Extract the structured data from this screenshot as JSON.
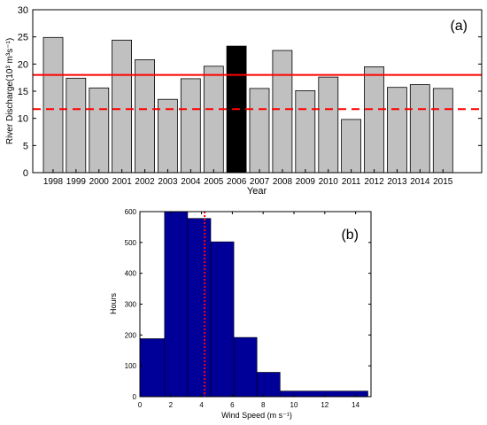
{
  "chart_data": [
    {
      "type": "bar",
      "panel_label": "(a)",
      "xlabel": "Year",
      "ylabel": "River Discharge(10³ m³s⁻¹)",
      "ylim": [
        0,
        30
      ],
      "yticks": [
        "0",
        "5",
        "10",
        "15",
        "20",
        "25",
        "30"
      ],
      "categories": [
        "1998",
        "1999",
        "2000",
        "2001",
        "2002",
        "2003",
        "2004",
        "2005",
        "2006",
        "2007",
        "2008",
        "2009",
        "2010",
        "2011",
        "2012",
        "2013",
        "2014",
        "2015"
      ],
      "values": [
        24.9,
        17.4,
        15.6,
        24.4,
        20.8,
        13.5,
        17.3,
        19.6,
        23.3,
        15.5,
        22.5,
        15.1,
        17.6,
        9.8,
        19.5,
        15.7,
        16.2,
        15.5
      ],
      "highlight_category": "2006",
      "reference_lines": [
        {
          "value": 18.0,
          "style": "solid",
          "color": "#ff0000"
        },
        {
          "value": 11.7,
          "style": "dashed",
          "color": "#ff0000"
        }
      ],
      "colors": {
        "bar": "#c0c0c0",
        "highlight": "#000000"
      },
      "grid": false
    },
    {
      "type": "bar",
      "panel_label": "(b)",
      "xlabel": "Wind Speed (m s⁻¹)",
      "ylabel": "Hours",
      "xlim": [
        0,
        15
      ],
      "ylim": [
        0,
        600
      ],
      "xticks": [
        "0",
        "2",
        "4",
        "6",
        "8",
        "10",
        "12",
        "14"
      ],
      "yticks": [
        "0",
        "100",
        "200",
        "300",
        "400",
        "500",
        "600"
      ],
      "bins": [
        {
          "x0": 0,
          "x1": 1.6,
          "value": 188
        },
        {
          "x0": 1.6,
          "x1": 3.1,
          "value": 600
        },
        {
          "x0": 3.1,
          "x1": 4.6,
          "value": 578
        },
        {
          "x0": 4.6,
          "x1": 6.1,
          "value": 502
        },
        {
          "x0": 6.1,
          "x1": 7.6,
          "value": 192
        },
        {
          "x0": 7.6,
          "x1": 9.1,
          "value": 79
        },
        {
          "x0": 9.1,
          "x1": 14.8,
          "value": 18
        }
      ],
      "reference_lines": [
        {
          "value": 4.2,
          "style": "dotted",
          "color": "#ff0000"
        }
      ],
      "colors": {
        "bar": "#000099",
        "edge": "#000000"
      },
      "grid": false
    }
  ]
}
